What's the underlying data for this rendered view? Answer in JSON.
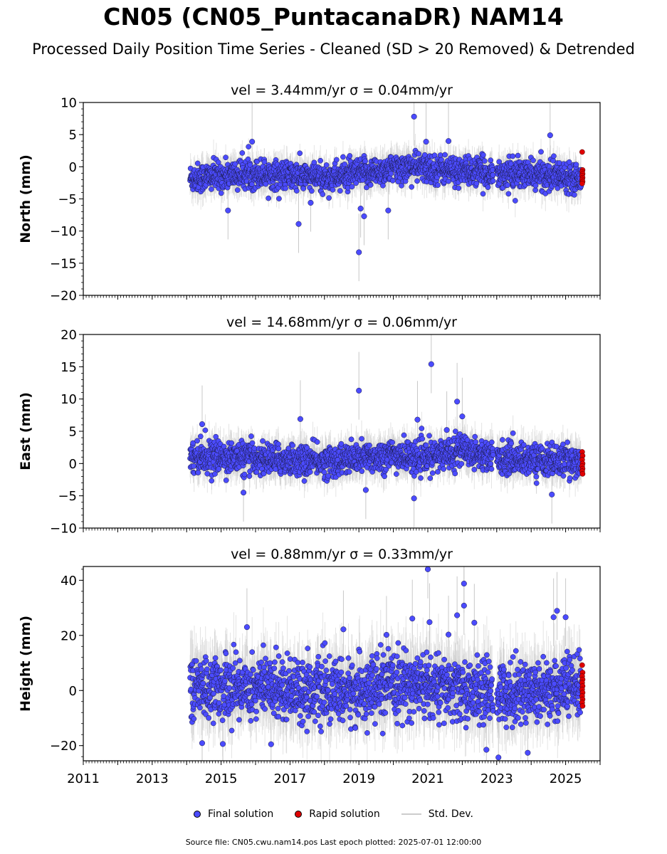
{
  "title": "CN05 (CN05_PuntacanaDR) NAM14",
  "subtitle": "Processed Daily Position Time Series - Cleaned (SD > 20 Removed) & Detrended",
  "footer": "Source file: CN05.cwu.nam14.pos  Last epoch plotted: 2025-07-01 12:00:00",
  "legend": {
    "final": "Final solution",
    "rapid": "Rapid solution",
    "std": "Std. Dev."
  },
  "colors": {
    "final": "#4b4bff",
    "rapid": "#e00000",
    "std": "#cccccc",
    "edge": "#1a1a40"
  },
  "chart_data": [
    {
      "type": "scatter",
      "component": "north",
      "title": "vel = 3.44mm/yr   σ = 0.04mm/yr",
      "ylabel": "North (mm)",
      "xlim": [
        2011,
        2026
      ],
      "ylim": [
        -20,
        10
      ],
      "yticks": [
        -20,
        -15,
        -10,
        -5,
        0,
        5,
        10
      ],
      "xticks": [
        2011,
        2013,
        2015,
        2017,
        2019,
        2021,
        2023,
        2025
      ],
      "xtick_labels_shown": false,
      "data_start": 2014.1,
      "data_end": 2025.5,
      "gap": [
        2022.9,
        2023.0
      ],
      "noise_sd": 1.3,
      "trend": [
        [
          2014.1,
          -1.8
        ],
        [
          2016.0,
          -1.0
        ],
        [
          2018.0,
          -1.8
        ],
        [
          2020.5,
          0.0
        ],
        [
          2021.5,
          -0.5
        ],
        [
          2022.9,
          -1.0
        ],
        [
          2025.5,
          -1.5
        ]
      ],
      "outliers": [
        [
          2020.6,
          7.8
        ],
        [
          2019.0,
          -13.3
        ],
        [
          2017.25,
          -8.9
        ],
        [
          2015.2,
          -6.8
        ],
        [
          2019.15,
          -7.7
        ],
        [
          2019.05,
          -6.5
        ],
        [
          2019.85,
          -6.8
        ],
        [
          2024.55,
          4.9
        ],
        [
          2015.9,
          3.9
        ],
        [
          2021.6,
          4.0
        ],
        [
          2020.95,
          3.9
        ],
        [
          2017.6,
          -5.6
        ]
      ],
      "rapid": [
        2.3,
        -0.5,
        -0.8,
        -1.1,
        -1.4,
        -1.7,
        -2.0,
        -2.3,
        -2.6
      ],
      "series": [
        {
          "name": "Final solution"
        },
        {
          "name": "Rapid solution"
        },
        {
          "name": "Std. Dev."
        }
      ]
    },
    {
      "type": "scatter",
      "component": "east",
      "title": "vel = 14.68mm/yr   σ = 0.06mm/yr",
      "ylabel": "East (mm)",
      "xlim": [
        2011,
        2026
      ],
      "ylim": [
        -10,
        20
      ],
      "yticks": [
        -10,
        -5,
        0,
        5,
        10,
        15,
        20
      ],
      "xticks": [
        2011,
        2013,
        2015,
        2017,
        2019,
        2021,
        2023,
        2025
      ],
      "xtick_labels_shown": false,
      "data_start": 2014.1,
      "data_end": 2025.5,
      "gap": [
        2022.9,
        2023.0
      ],
      "noise_sd": 1.4,
      "trend": [
        [
          2014.1,
          1.2
        ],
        [
          2016.0,
          0.8
        ],
        [
          2018.0,
          0.3
        ],
        [
          2020.0,
          1.3
        ],
        [
          2021.0,
          0.8
        ],
        [
          2022.0,
          2.3
        ],
        [
          2022.9,
          0.9
        ],
        [
          2025.5,
          0.3
        ]
      ],
      "outliers": [
        [
          2021.1,
          15.4
        ],
        [
          2019.0,
          11.3
        ],
        [
          2021.85,
          9.6
        ],
        [
          2017.3,
          6.9
        ],
        [
          2022.0,
          7.3
        ],
        [
          2020.7,
          6.8
        ],
        [
          2015.65,
          -4.5
        ],
        [
          2020.6,
          -5.4
        ],
        [
          2024.6,
          -4.8
        ],
        [
          2019.2,
          -4.1
        ],
        [
          2014.45,
          6.1
        ],
        [
          2021.55,
          5.2
        ]
      ],
      "rapid": [
        1.8,
        1.2,
        0.6,
        0.0,
        -0.4,
        -0.8,
        -1.2,
        -1.6
      ],
      "series": [
        {
          "name": "Final solution"
        },
        {
          "name": "Rapid solution"
        },
        {
          "name": "Std. Dev."
        }
      ]
    },
    {
      "type": "scatter",
      "component": "height",
      "title": "vel = 0.88mm/yr   σ = 0.33mm/yr",
      "ylabel": "Height (mm)",
      "xlim": [
        2011,
        2026
      ],
      "ylim": [
        -25.5,
        45
      ],
      "yticks": [
        -20,
        0,
        20,
        40
      ],
      "xticks": [
        2011,
        2013,
        2015,
        2017,
        2019,
        2021,
        2023,
        2025
      ],
      "xtick_labels": [
        "2011",
        "2013",
        "2015",
        "2017",
        "2019",
        "2021",
        "2023",
        "2025"
      ],
      "xtick_labels_shown": true,
      "data_start": 2014.1,
      "data_end": 2025.5,
      "gap": [
        2022.9,
        2023.0
      ],
      "noise_sd": 6.5,
      "trend": [
        [
          2014.1,
          1.0
        ],
        [
          2016.5,
          1.5
        ],
        [
          2018.5,
          -1.0
        ],
        [
          2020.5,
          2.5
        ],
        [
          2021.5,
          0.5
        ],
        [
          2022.9,
          -1.0
        ],
        [
          2025.5,
          1.5
        ]
      ],
      "outliers": [
        [
          2021.0,
          44.0
        ],
        [
          2022.05,
          38.8
        ],
        [
          2022.05,
          30.8
        ],
        [
          2021.85,
          27.3
        ],
        [
          2024.75,
          28.9
        ],
        [
          2024.65,
          26.6
        ],
        [
          2025.0,
          26.6
        ],
        [
          2020.55,
          26.1
        ],
        [
          2021.05,
          24.8
        ],
        [
          2022.35,
          24.6
        ],
        [
          2015.75,
          23.0
        ],
        [
          2018.55,
          22.2
        ],
        [
          2021.6,
          20.3
        ],
        [
          2019.8,
          20.2
        ],
        [
          2023.05,
          -24.3
        ],
        [
          2022.7,
          -21.5
        ],
        [
          2023.9,
          -22.6
        ],
        [
          2014.45,
          -19.1
        ],
        [
          2015.05,
          -19.4
        ],
        [
          2016.45,
          -19.5
        ]
      ],
      "rapid": [
        9.2,
        6.5,
        5.2,
        4.0,
        2.8,
        1.6,
        0.4,
        -0.8,
        -2.0,
        -3.2,
        -4.4,
        -5.6
      ],
      "series": [
        {
          "name": "Final solution"
        },
        {
          "name": "Rapid solution"
        },
        {
          "name": "Std. Dev."
        }
      ]
    }
  ]
}
